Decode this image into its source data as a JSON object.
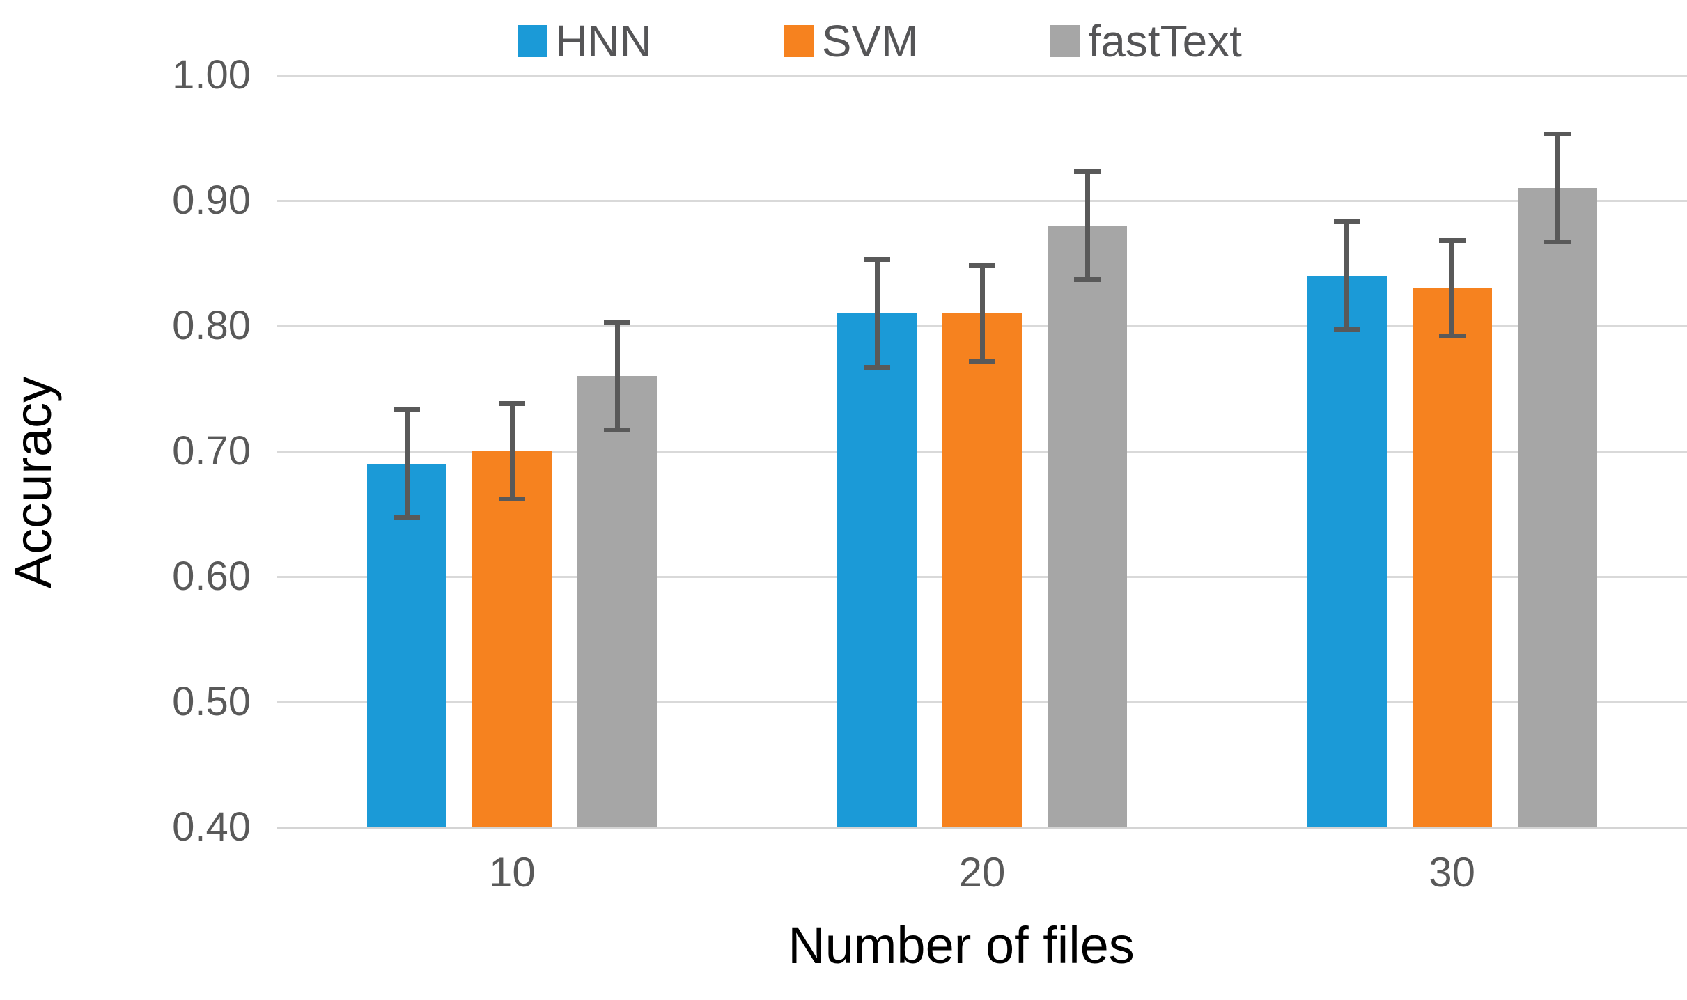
{
  "chart_data": {
    "type": "bar",
    "title": "",
    "xlabel": "Number of files",
    "ylabel": "Accuracy",
    "categories": [
      "10",
      "20",
      "30"
    ],
    "series": [
      {
        "name": "HNN",
        "color": "#1B9AD7",
        "values": [
          0.69,
          0.81,
          0.84
        ],
        "error": [
          0.045,
          0.045,
          0.045
        ]
      },
      {
        "name": "SVM",
        "color": "#F6821F",
        "values": [
          0.7,
          0.81,
          0.83
        ],
        "error": [
          0.04,
          0.04,
          0.04
        ]
      },
      {
        "name": "fastText",
        "color": "#A6A6A6",
        "values": [
          0.76,
          0.88,
          0.91
        ],
        "error": [
          0.045,
          0.045,
          0.045
        ]
      }
    ],
    "ylim": [
      0.4,
      1.0
    ],
    "yticks": [
      1.0,
      0.9,
      0.8,
      0.7,
      0.6,
      0.5,
      0.4
    ],
    "ytick_labels": [
      "1.00",
      "0.90",
      "0.80",
      "0.70",
      "0.60",
      "0.50",
      "0.40"
    ],
    "grid": true,
    "legend_position": "top",
    "colors": {
      "gridline": "#D9D9D9",
      "baseline": "#D4D4D4",
      "error_bar": "#595959",
      "tick_label": "#595959",
      "legend_label": "#555557",
      "axis_title": "#000000"
    }
  }
}
